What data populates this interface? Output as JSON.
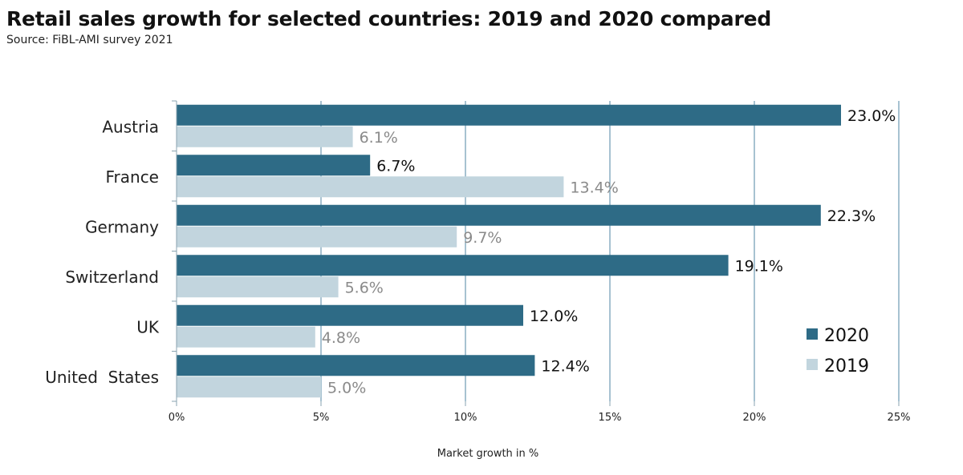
{
  "title": "Retail sales growth for selected countries: 2019 and 2020 compared",
  "subtitle": "Source: FiBL-AMI survey 2021",
  "chart_data": {
    "type": "bar",
    "orientation": "horizontal",
    "categories": [
      "Austria",
      "France",
      "Germany",
      "Switzerland",
      "UK",
      "United  States"
    ],
    "series": [
      {
        "name": "2020",
        "color": "#2e6b86",
        "values": [
          23.0,
          6.7,
          22.3,
          19.1,
          12.0,
          12.4
        ],
        "labels": [
          "23.0%",
          "6.7%",
          "22.3%",
          "19.1%",
          "12.0%",
          "12.4%"
        ]
      },
      {
        "name": "2019",
        "color": "#c2d5de",
        "values": [
          6.1,
          13.4,
          9.7,
          5.6,
          4.8,
          5.0
        ],
        "labels": [
          "6.1%",
          "13.4%",
          "9.7%",
          "5.6%",
          "4.8%",
          "5.0%"
        ]
      }
    ],
    "xlim": [
      0,
      25
    ],
    "xticks": [
      0,
      5,
      10,
      15,
      20,
      25
    ],
    "xtick_labels": [
      "0%",
      "5%",
      "10%",
      "15%",
      "20%",
      "25%"
    ],
    "xlabel": "Market growth in %",
    "ylabel": "",
    "grid": "vertical",
    "legend_position": "bottom-right"
  }
}
